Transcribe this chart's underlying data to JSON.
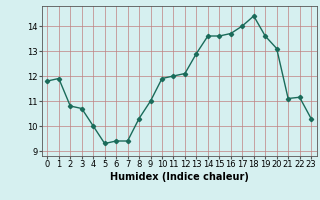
{
  "x": [
    0,
    1,
    2,
    3,
    4,
    5,
    6,
    7,
    8,
    9,
    10,
    11,
    12,
    13,
    14,
    15,
    16,
    17,
    18,
    19,
    20,
    21,
    22,
    23
  ],
  "y": [
    11.8,
    11.9,
    10.8,
    10.7,
    10.0,
    9.3,
    9.4,
    9.4,
    10.3,
    11.0,
    11.9,
    12.0,
    12.1,
    12.9,
    13.6,
    13.6,
    13.7,
    14.0,
    14.4,
    13.6,
    13.1,
    11.1,
    11.15,
    10.3
  ],
  "line_color": "#1a6b5a",
  "marker": "D",
  "marker_size": 2.2,
  "bg_color": "#d6f0f0",
  "grid_color": "#c08080",
  "xlabel": "Humidex (Indice chaleur)",
  "xlabel_fontsize": 7,
  "tick_fontsize": 6,
  "xlim": [
    -0.5,
    23.5
  ],
  "ylim": [
    8.8,
    14.8
  ],
  "yticks": [
    9,
    10,
    11,
    12,
    13,
    14
  ],
  "xticks": [
    0,
    1,
    2,
    3,
    4,
    5,
    6,
    7,
    8,
    9,
    10,
    11,
    12,
    13,
    14,
    15,
    16,
    17,
    18,
    19,
    20,
    21,
    22,
    23
  ],
  "line_width": 1.0
}
